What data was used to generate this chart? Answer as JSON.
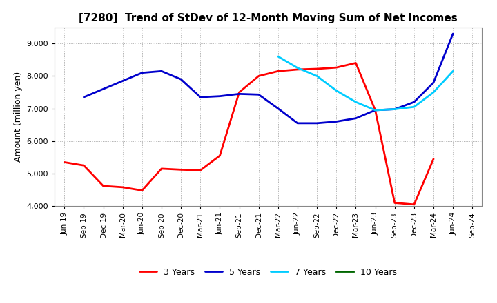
{
  "title": "[7280]  Trend of StDev of 12-Month Moving Sum of Net Incomes",
  "ylabel": "Amount (million yen)",
  "x_labels": [
    "Jun-19",
    "Sep-19",
    "Dec-19",
    "Mar-20",
    "Jun-20",
    "Sep-20",
    "Dec-20",
    "Mar-21",
    "Jun-21",
    "Sep-21",
    "Dec-21",
    "Mar-22",
    "Jun-22",
    "Sep-22",
    "Dec-22",
    "Mar-23",
    "Jun-23",
    "Sep-23",
    "Dec-23",
    "Mar-24",
    "Jun-24",
    "Sep-24"
  ],
  "ylim": [
    4000,
    9500
  ],
  "yticks": [
    4000,
    5000,
    6000,
    7000,
    8000,
    9000
  ],
  "series": {
    "3 Years": {
      "color": "#FF0000",
      "linewidth": 2.0,
      "data_x": [
        "Jun-19",
        "Sep-19",
        "Dec-19",
        "Mar-20",
        "Jun-20",
        "Sep-20",
        "Dec-20",
        "Mar-21",
        "Jun-21",
        "Sep-21",
        "Dec-21",
        "Mar-22",
        "Jun-22",
        "Sep-22",
        "Dec-22",
        "Mar-23",
        "Jun-23",
        "Sep-23",
        "Dec-23",
        "Mar-24"
      ],
      "data_y": [
        5350,
        5250,
        4620,
        4580,
        4480,
        5150,
        5120,
        5100,
        5550,
        7500,
        8000,
        8150,
        8200,
        8220,
        8260,
        8400,
        6950,
        4100,
        4050,
        5450
      ]
    },
    "5 Years": {
      "color": "#0000CC",
      "linewidth": 2.0,
      "data_x": [
        "Sep-19",
        "Jun-20",
        "Sep-20",
        "Dec-20",
        "Mar-21",
        "Jun-21",
        "Sep-21",
        "Dec-21",
        "Mar-22",
        "Jun-22",
        "Sep-22",
        "Dec-22",
        "Mar-23",
        "Jun-23",
        "Sep-23",
        "Dec-23",
        "Mar-24",
        "Jun-24"
      ],
      "data_y": [
        7350,
        8100,
        8150,
        7900,
        7350,
        7380,
        7450,
        7430,
        7000,
        6550,
        6550,
        6600,
        6700,
        6950,
        6980,
        7200,
        7800,
        9300
      ]
    },
    "7 Years": {
      "color": "#00CCFF",
      "linewidth": 2.0,
      "data_x": [
        "Mar-22",
        "Jun-22",
        "Sep-22",
        "Dec-22",
        "Mar-23",
        "Jun-23",
        "Sep-23",
        "Dec-23",
        "Mar-24",
        "Jun-24"
      ],
      "data_y": [
        8600,
        8250,
        8000,
        7550,
        7200,
        6950,
        6980,
        7050,
        7500,
        8150
      ]
    },
    "10 Years": {
      "color": "#006600",
      "linewidth": 2.0,
      "data_x": [],
      "data_y": []
    }
  },
  "legend_labels": [
    "3 Years",
    "5 Years",
    "7 Years",
    "10 Years"
  ],
  "background_color": "#FFFFFF",
  "grid_color": "#999999"
}
